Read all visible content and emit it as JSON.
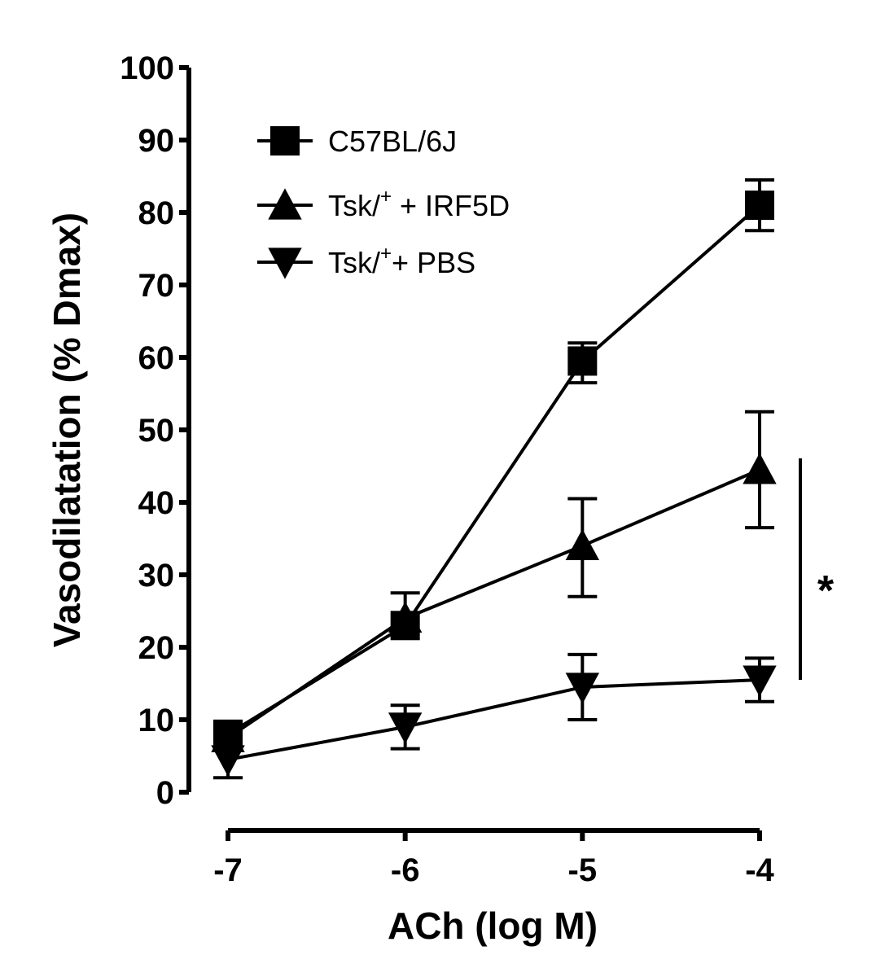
{
  "chart_data": {
    "type": "line",
    "xlabel": "ACh (log M)",
    "ylabel": "Vasodilatation (% Dmax)",
    "x": [
      -7,
      -6,
      -5,
      -4
    ],
    "x_ticks": [
      "-7",
      "-6",
      "-5",
      "-4"
    ],
    "y_ticks": [
      "0",
      "10",
      "20",
      "30",
      "40",
      "50",
      "60",
      "70",
      "80",
      "90",
      "100"
    ],
    "xlim": [
      -7,
      -4
    ],
    "ylim": [
      0,
      100
    ],
    "grid": false,
    "legend_position": "top-left",
    "series": [
      {
        "label_main": "C57BL/6J",
        "label_sup": "",
        "label_tail": "",
        "marker": "square",
        "values": [
          8,
          23,
          59.5,
          81
        ],
        "err_plus": [
          0,
          4.5,
          2.5,
          3.5
        ],
        "err_minus": [
          0,
          0,
          3,
          3.5
        ]
      },
      {
        "label_main": "Tsk/",
        "label_sup": "+",
        "label_tail": " + IRF5D",
        "marker": "triangle-up",
        "values": [
          7.5,
          24,
          34,
          44.5
        ],
        "err_plus": [
          0,
          0,
          6.5,
          8
        ],
        "err_minus": [
          0,
          0,
          7,
          8
        ]
      },
      {
        "label_main": "Tsk/",
        "label_sup": "+",
        "label_tail": "+ PBS",
        "marker": "triangle-down",
        "values": [
          4.5,
          9,
          14.5,
          15.5
        ],
        "err_plus": [
          0,
          3,
          4.5,
          3
        ],
        "err_minus": [
          2.5,
          3,
          4.5,
          3
        ]
      }
    ],
    "annotation": {
      "text": "*"
    }
  }
}
